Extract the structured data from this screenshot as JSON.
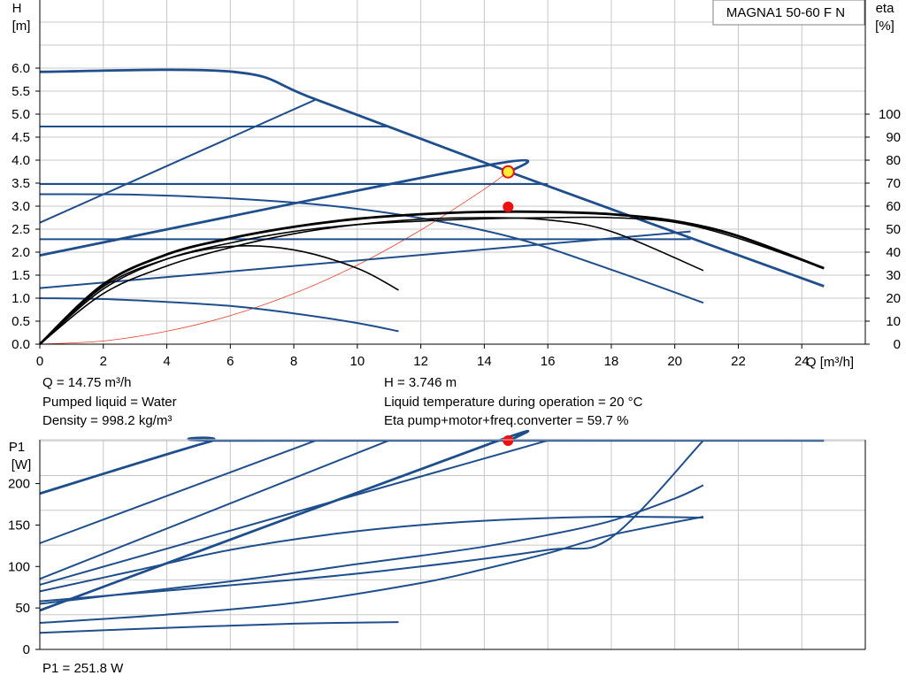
{
  "chart_data": [
    {
      "type": "line",
      "title": "MAGNA1 50-60 F N",
      "ylabel": "H",
      "yunit": "[m]",
      "y2label": "eta",
      "y2unit": "[%]",
      "xlabel": "Q [m³/h]",
      "xlim": [
        0,
        26
      ],
      "ylim": [
        0,
        6.0
      ],
      "y2lim": [
        0,
        100
      ],
      "xticks": [
        "0",
        "2",
        "4",
        "6",
        "8",
        "10",
        "12",
        "14",
        "16",
        "18",
        "20",
        "22",
        "24"
      ],
      "yticks": [
        "0.0",
        "0.5",
        "1.0",
        "1.5",
        "2.0",
        "2.5",
        "3.0",
        "3.5",
        "4.0",
        "4.5",
        "5.0",
        "5.5",
        "6.0"
      ],
      "y2ticks": [
        "0",
        "10",
        "20",
        "30",
        "40",
        "50",
        "60",
        "70",
        "80",
        "90",
        "100"
      ],
      "grid": true,
      "head_curves": [
        {
          "x": [
            0,
            6.1,
            8.7,
            14.8,
            24.7
          ],
          "y": [
            5.92,
            5.92,
            5.32,
            3.74,
            1.26
          ]
        },
        {
          "x": [
            0,
            8.7
          ],
          "y": [
            2.64,
            5.32
          ]
        },
        {
          "x": [
            0,
            11
          ],
          "y": [
            4.73,
            4.73
          ]
        },
        {
          "x": [
            0,
            14.1,
            14.8
          ],
          "y": [
            1.93,
            3.89,
            3.74
          ]
        },
        {
          "x": [
            0,
            16
          ],
          "y": [
            3.48,
            3.48
          ]
        },
        {
          "x": [
            0,
            3,
            6,
            9,
            12,
            15,
            18,
            20.9
          ],
          "y": [
            3.26,
            3.25,
            3.17,
            3.02,
            2.74,
            2.3,
            1.62,
            0.9
          ]
        },
        {
          "x": [
            0,
            20.5
          ],
          "y": [
            2.28,
            2.28
          ]
        },
        {
          "x": [
            0,
            20.5
          ],
          "y": [
            1.22,
            2.45
          ]
        },
        {
          "x": [
            0,
            2,
            4,
            6,
            8,
            10,
            11.3
          ],
          "y": [
            1.0,
            0.98,
            0.92,
            0.83,
            0.67,
            0.46,
            0.28
          ]
        }
      ],
      "eta_curves": [
        {
          "x": [
            0,
            2,
            4,
            6,
            8,
            10,
            12,
            14,
            16,
            18,
            20,
            22,
            24.7
          ],
          "y": [
            0,
            26,
            39,
            46,
            51,
            54.5,
            56.5,
            57.5,
            57.5,
            56.5,
            53.5,
            47,
            33
          ]
        },
        {
          "x": [
            0,
            2,
            4,
            6,
            8,
            10,
            12,
            14,
            16,
            18,
            20.9
          ],
          "y": [
            0,
            22,
            34,
            42,
            48,
            52,
            54.3,
            55,
            54,
            49,
            32
          ]
        },
        {
          "x": [
            0,
            2,
            4,
            6,
            8,
            10,
            11.3
          ],
          "y": [
            0,
            25,
            37,
            42.5,
            41,
            33,
            23.5
          ]
        },
        {
          "x": [
            0,
            2,
            4,
            6,
            8,
            10,
            12,
            14,
            16,
            18,
            20,
            22,
            24.7
          ],
          "y": [
            0,
            24,
            37,
            44,
            49,
            52,
            53.5,
            54.5,
            55,
            55,
            53,
            46,
            33
          ]
        }
      ],
      "system_curve": {
        "x": [
          0,
          2,
          4,
          6,
          8,
          10,
          12,
          14,
          14.75
        ],
        "y": [
          0,
          0.07,
          0.28,
          0.62,
          1.1,
          1.72,
          2.48,
          3.37,
          3.746
        ]
      },
      "duty_point_head": {
        "x": 14.75,
        "y": 3.746
      },
      "duty_point_eta": {
        "x": 14.75,
        "y": 59.7
      }
    },
    {
      "type": "line",
      "ylabel": "P1",
      "yunit": "[W]",
      "xlim": [
        0,
        26
      ],
      "ylim": [
        0,
        258
      ],
      "yticks": [
        "0",
        "50",
        "100",
        "150",
        "200"
      ],
      "grid": true,
      "power_curves": [
        {
          "x": [
            0,
            5.3,
            6.1,
            24.7
          ],
          "y": [
            188,
            250,
            252,
            252
          ]
        },
        {
          "x": [
            0,
            8.7
          ],
          "y": [
            128,
            252
          ]
        },
        {
          "x": [
            0,
            11
          ],
          "y": [
            85,
            252
          ]
        },
        {
          "x": [
            0,
            14.1,
            14.8
          ],
          "y": [
            47,
            247,
            252
          ]
        },
        {
          "x": [
            0,
            16
          ],
          "y": [
            78,
            252
          ]
        },
        {
          "x": [
            0,
            2,
            4,
            6,
            8,
            10,
            12,
            14,
            16,
            18,
            20,
            20.9
          ],
          "y": [
            55,
            64,
            73,
            82,
            92,
            103,
            113,
            124,
            138,
            155,
            182,
            198
          ]
        },
        {
          "x": [
            0,
            8,
            12,
            16,
            18,
            20.9
          ],
          "y": [
            58,
            84,
            100,
            120,
            135,
            252
          ]
        },
        {
          "x": [
            0,
            4,
            8,
            12,
            14,
            16,
            18,
            20.9
          ],
          "y": [
            32,
            42,
            56,
            80,
            97,
            116,
            138,
            160
          ]
        },
        {
          "x": [
            0,
            4,
            8,
            11.3
          ],
          "y": [
            20,
            26,
            31,
            33
          ]
        },
        {
          "x": [
            0,
            3,
            6,
            9,
            12,
            15,
            18,
            20.9
          ],
          "y": [
            70,
            95,
            120,
            138,
            150,
            157,
            160,
            159
          ]
        }
      ],
      "duty_point": {
        "x": 14.75,
        "y": 251.8
      }
    }
  ],
  "info": {
    "q": "Q = 14.75 m³/h",
    "liquid": "Pumped liquid = Water",
    "density": "Density = 998.2 kg/m³",
    "h": "H = 3.746 m",
    "temp": "Liquid temperature during operation = 20 °C",
    "eta": "Eta pump+motor+freq.converter = 59.7 %",
    "p1": "P1 = 251.8 W"
  },
  "colors": {
    "pump": "#1f4e8c",
    "eta": "#000000",
    "system": "#e8402c",
    "duty": "#ee1111",
    "duty_fill": "#ffee33",
    "grid": "#c8c8c8"
  }
}
